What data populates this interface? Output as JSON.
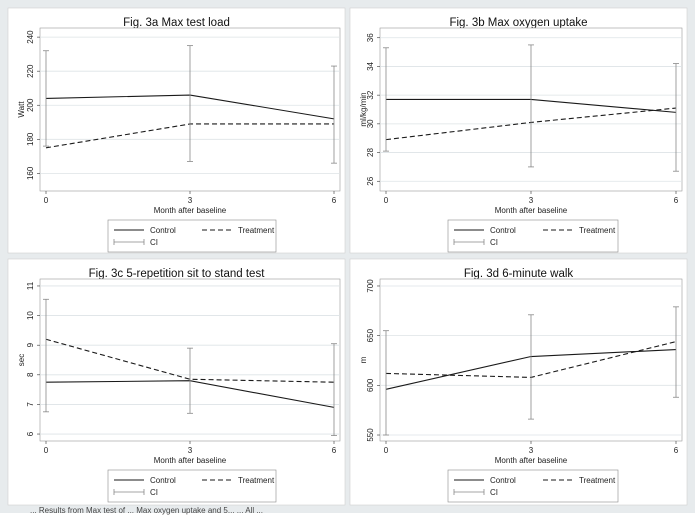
{
  "chart_data": [
    {
      "type": "line",
      "title": "Fig. 3a Max test load",
      "xlabel": "Month after baseline",
      "ylabel": "Watt",
      "x": [
        0,
        3,
        6
      ],
      "xticks": [
        "0",
        "3",
        "6"
      ],
      "yticks": [
        "160",
        "180",
        "200",
        "220",
        "240"
      ],
      "ylim": [
        152,
        243
      ],
      "grid": true,
      "legend_position": "bottom",
      "series": [
        {
          "name": "Control",
          "style": "solid",
          "values": [
            204,
            206,
            192
          ]
        },
        {
          "name": "Treatment",
          "style": "dashed",
          "values": [
            175,
            189,
            189
          ]
        },
        {
          "name": "CI",
          "style": "errorbar",
          "intervals": [
            [
              176,
              232
            ],
            [
              167,
              235
            ],
            [
              166,
              223
            ]
          ]
        }
      ]
    },
    {
      "type": "line",
      "title": "Fig. 3b Max oxygen uptake",
      "xlabel": "Month after baseline",
      "ylabel": "ml/kg/min",
      "x": [
        0,
        3,
        6
      ],
      "xticks": [
        "0",
        "3",
        "6"
      ],
      "yticks": [
        "26",
        "28",
        "30",
        "32",
        "34",
        "36"
      ],
      "ylim": [
        25.6,
        36.4
      ],
      "grid": true,
      "legend_position": "bottom",
      "series": [
        {
          "name": "Control",
          "style": "solid",
          "values": [
            31.7,
            31.7,
            30.8
          ]
        },
        {
          "name": "Treatment",
          "style": "dashed",
          "values": [
            28.9,
            30.1,
            31.1
          ]
        },
        {
          "name": "CI",
          "style": "errorbar",
          "intervals": [
            [
              28.1,
              35.3
            ],
            [
              27.0,
              35.5
            ],
            [
              26.7,
              34.2
            ]
          ]
        }
      ]
    },
    {
      "type": "line",
      "title": "Fig. 3c 5-repetition sit to stand test",
      "xlabel": "Month after baseline",
      "ylabel": "sec",
      "x": [
        0,
        3,
        6
      ],
      "xticks": [
        "0",
        "3",
        "6"
      ],
      "yticks": [
        "6",
        "7",
        "8",
        "9",
        "10",
        "11"
      ],
      "ylim": [
        5.9,
        11.1
      ],
      "grid": true,
      "legend_position": "bottom",
      "series": [
        {
          "name": "Control",
          "style": "solid",
          "values": [
            7.75,
            7.8,
            6.9
          ]
        },
        {
          "name": "Treatment",
          "style": "dashed",
          "values": [
            9.2,
            7.85,
            7.75
          ]
        },
        {
          "name": "CI",
          "style": "errorbar",
          "intervals": [
            [
              6.75,
              10.55
            ],
            [
              6.7,
              8.9
            ],
            [
              5.95,
              9.05
            ]
          ]
        }
      ]
    },
    {
      "type": "line",
      "title": "Fig. 3d 6-minute walk",
      "xlabel": "Month after baseline",
      "ylabel": "m",
      "x": [
        0,
        3,
        6
      ],
      "xticks": [
        "0",
        "3",
        "6"
      ],
      "yticks": [
        "550",
        "600",
        "650",
        "700"
      ],
      "ylim": [
        548,
        703
      ],
      "grid": true,
      "legend_position": "bottom",
      "series": [
        {
          "name": "Control",
          "style": "solid",
          "values": [
            596,
            629,
            636
          ]
        },
        {
          "name": "Treatment",
          "style": "dashed",
          "values": [
            612,
            608,
            644
          ]
        },
        {
          "name": "CI",
          "style": "errorbar",
          "intervals": [
            [
              550,
              655
            ],
            [
              566,
              671
            ],
            [
              588,
              679
            ]
          ]
        }
      ]
    }
  ],
  "caption": "... Results from Max test of ... Max oxygen uptake and 5... ... All ..."
}
